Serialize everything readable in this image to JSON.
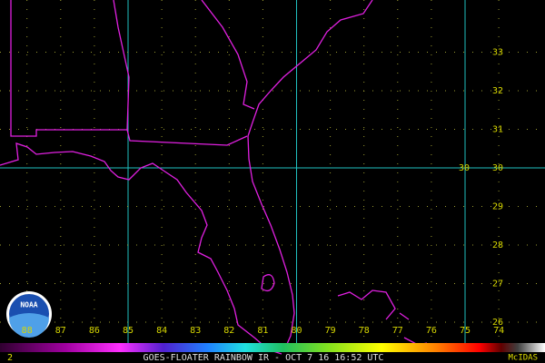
{
  "map": {
    "latitude_labels": [
      33,
      32,
      31,
      30,
      29,
      28,
      27,
      26
    ],
    "longitude_labels": [
      88,
      87,
      86,
      85,
      84,
      83,
      82,
      81,
      80,
      79,
      78,
      77,
      76,
      75,
      74
    ],
    "marker_label": 30,
    "logo": "NOAA",
    "frame_number": "2",
    "caption": "GOES-FLOATER RAINBOW IR - OCT 7 16 16:52 UTC",
    "software": "McIDAS"
  }
}
